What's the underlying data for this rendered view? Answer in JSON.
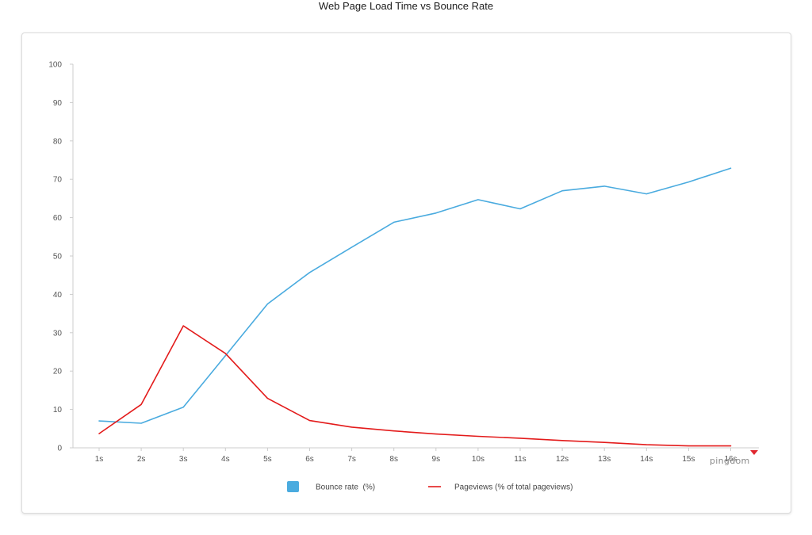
{
  "page": {
    "title": "Web Page Load Time vs Bounce Rate"
  },
  "brand": {
    "name": "pingdom",
    "icon": "pingdom-logo-icon",
    "accent": "#e0262f"
  },
  "chart_data": {
    "type": "line",
    "title": "Web Page Load Time vs Bounce Rate",
    "xlabel": "",
    "ylabel": "",
    "categories": [
      "1s",
      "2s",
      "3s",
      "4s",
      "5s",
      "6s",
      "7s",
      "8s",
      "9s",
      "10s",
      "11s",
      "12s",
      "13s",
      "14s",
      "15s",
      "16s"
    ],
    "ylim": [
      0,
      100
    ],
    "yticks": [
      0,
      10,
      20,
      30,
      40,
      50,
      60,
      70,
      80,
      90,
      100
    ],
    "grid": false,
    "legend_position": "bottom",
    "series": [
      {
        "name": "Bounce rate  (%)",
        "color": "#4aabdf",
        "legend_marker": "square",
        "values": [
          7,
          6.4,
          10.6,
          24,
          37.5,
          45.7,
          52.3,
          58.8,
          61.2,
          64.7,
          62.3,
          67,
          68.2,
          66.2,
          69.3,
          72.9
        ]
      },
      {
        "name": "Pageviews (% of total pageviews)",
        "color": "#e31b1b",
        "legend_marker": "line",
        "values": [
          3.7,
          11.3,
          31.8,
          24.6,
          12.9,
          7.1,
          5.4,
          4.4,
          3.6,
          3,
          2.5,
          1.9,
          1.4,
          0.8,
          0.5,
          0.5
        ]
      }
    ]
  }
}
